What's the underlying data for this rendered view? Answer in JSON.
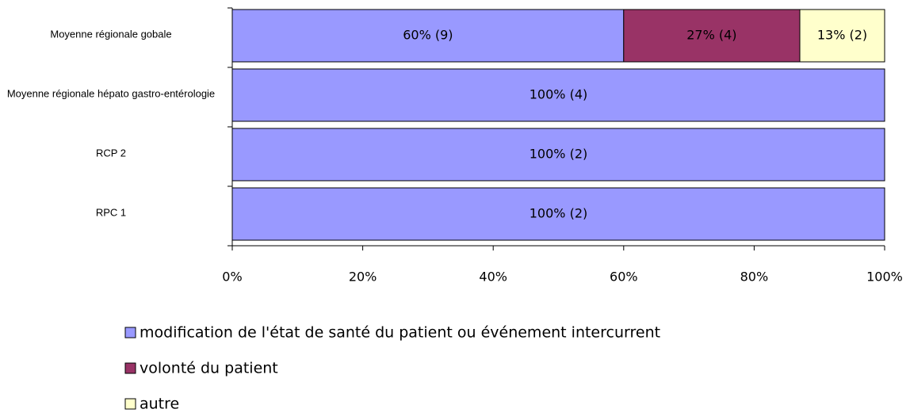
{
  "chart_data": {
    "type": "stacked-bar-horizontal",
    "categories": [
      "Moyenne régionale gobale",
      "Moyenne régionale hépato gastro-entérologie",
      "RCP 2",
      "RPC 1"
    ],
    "series": [
      {
        "name": "modification de l'état de santé du patient ou événement intercurrent",
        "color": "#9999ff",
        "values": [
          60,
          100,
          100,
          100
        ],
        "value_labels": [
          "60% (9)",
          "100% (4)",
          "100% (2)",
          "100% (2)"
        ]
      },
      {
        "name": "volonté du patient",
        "color": "#993366",
        "values": [
          27,
          0,
          0,
          0
        ],
        "value_labels": [
          "27% (4)",
          null,
          null,
          null
        ]
      },
      {
        "name": "autre",
        "color": "#ffffcc",
        "values": [
          13,
          0,
          0,
          0
        ],
        "value_labels": [
          "13% (2)",
          null,
          null,
          null
        ]
      }
    ],
    "xlim": [
      0,
      100
    ],
    "xticks": [
      {
        "value": 0,
        "label": "0%"
      },
      {
        "value": 20,
        "label": "20%"
      },
      {
        "value": 40,
        "label": "40%"
      },
      {
        "value": 60,
        "label": "60%"
      },
      {
        "value": 80,
        "label": "80%"
      },
      {
        "value": 100,
        "label": "100%"
      }
    ]
  }
}
